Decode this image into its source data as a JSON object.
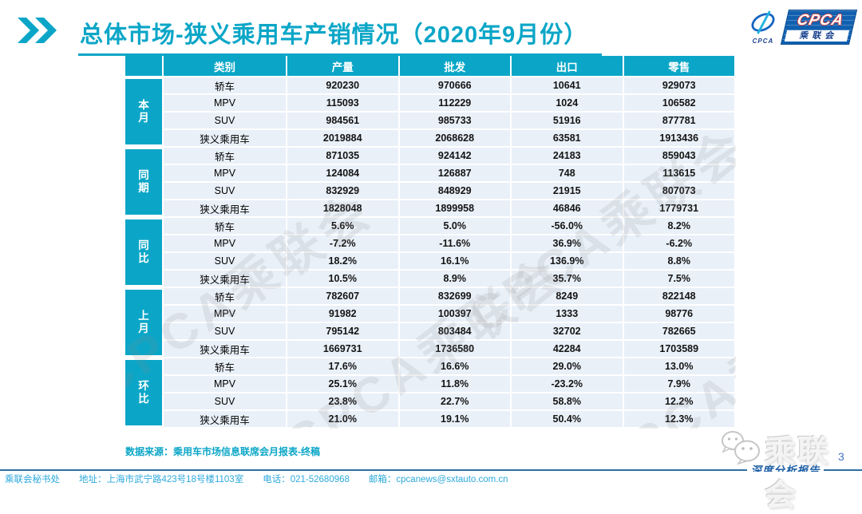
{
  "page": {
    "title": "总体市场-狭义乘用车产销情况（2020年9月份）",
    "page_number": "3"
  },
  "logo": {
    "emblem_caption": "CPCA",
    "cpca": "CPCA",
    "cn_name": "乘联会"
  },
  "table": {
    "columns": [
      "类别",
      "产量",
      "批发",
      "出口",
      "零售"
    ],
    "groups": [
      {
        "label": "本月",
        "rows": [
          [
            "轿车",
            "920230",
            "970666",
            "10641",
            "929073"
          ],
          [
            "MPV",
            "115093",
            "112229",
            "1024",
            "106582"
          ],
          [
            "SUV",
            "984561",
            "985733",
            "51916",
            "877781"
          ],
          [
            "狭义乘用车",
            "2019884",
            "2068628",
            "63581",
            "1913436"
          ]
        ]
      },
      {
        "label": "同期",
        "rows": [
          [
            "轿车",
            "871035",
            "924142",
            "24183",
            "859043"
          ],
          [
            "MPV",
            "124084",
            "126887",
            "748",
            "113615"
          ],
          [
            "SUV",
            "832929",
            "848929",
            "21915",
            "807073"
          ],
          [
            "狭义乘用车",
            "1828048",
            "1899958",
            "46846",
            "1779731"
          ]
        ]
      },
      {
        "label": "同比",
        "rows": [
          [
            "轿车",
            "5.6%",
            "5.0%",
            "-56.0%",
            "8.2%"
          ],
          [
            "MPV",
            "-7.2%",
            "-11.6%",
            "36.9%",
            "-6.2%"
          ],
          [
            "SUV",
            "18.2%",
            "16.1%",
            "136.9%",
            "8.8%"
          ],
          [
            "狭义乘用车",
            "10.5%",
            "8.9%",
            "35.7%",
            "7.5%"
          ]
        ]
      },
      {
        "label": "上月",
        "rows": [
          [
            "轿车",
            "782607",
            "832699",
            "8249",
            "822148"
          ],
          [
            "MPV",
            "91982",
            "100397",
            "1333",
            "98776"
          ],
          [
            "SUV",
            "795142",
            "803484",
            "32702",
            "782665"
          ],
          [
            "狭义乘用车",
            "1669731",
            "1736580",
            "42284",
            "1703589"
          ]
        ]
      },
      {
        "label": "环比",
        "rows": [
          [
            "轿车",
            "17.6%",
            "16.6%",
            "29.0%",
            "13.0%"
          ],
          [
            "MPV",
            "25.1%",
            "11.8%",
            "-23.2%",
            "7.9%"
          ],
          [
            "SUV",
            "23.8%",
            "22.7%",
            "58.8%",
            "12.2%"
          ],
          [
            "狭义乘用车",
            "21.0%",
            "19.1%",
            "50.4%",
            "12.3%"
          ]
        ]
      }
    ]
  },
  "watermark": {
    "text": "CPCA乘联会"
  },
  "footer": {
    "source": "数据来源：乘用车市场信息联席会月报表-终稿",
    "secretariat": "乘联会秘书处",
    "address": "地址：上海市武宁路423号18号楼1103室",
    "phone": "电话：021-52680968",
    "email": "邮箱：cpcanews@sxtauto.com.cn",
    "report_label": "深度分析报告",
    "wechat_name": "乘联会"
  },
  "colors": {
    "teal": "#0ba6c7",
    "row_bg": "#e9f0f8",
    "line_blue": "#2d6fa3",
    "footer_text": "#2ea9dc"
  }
}
